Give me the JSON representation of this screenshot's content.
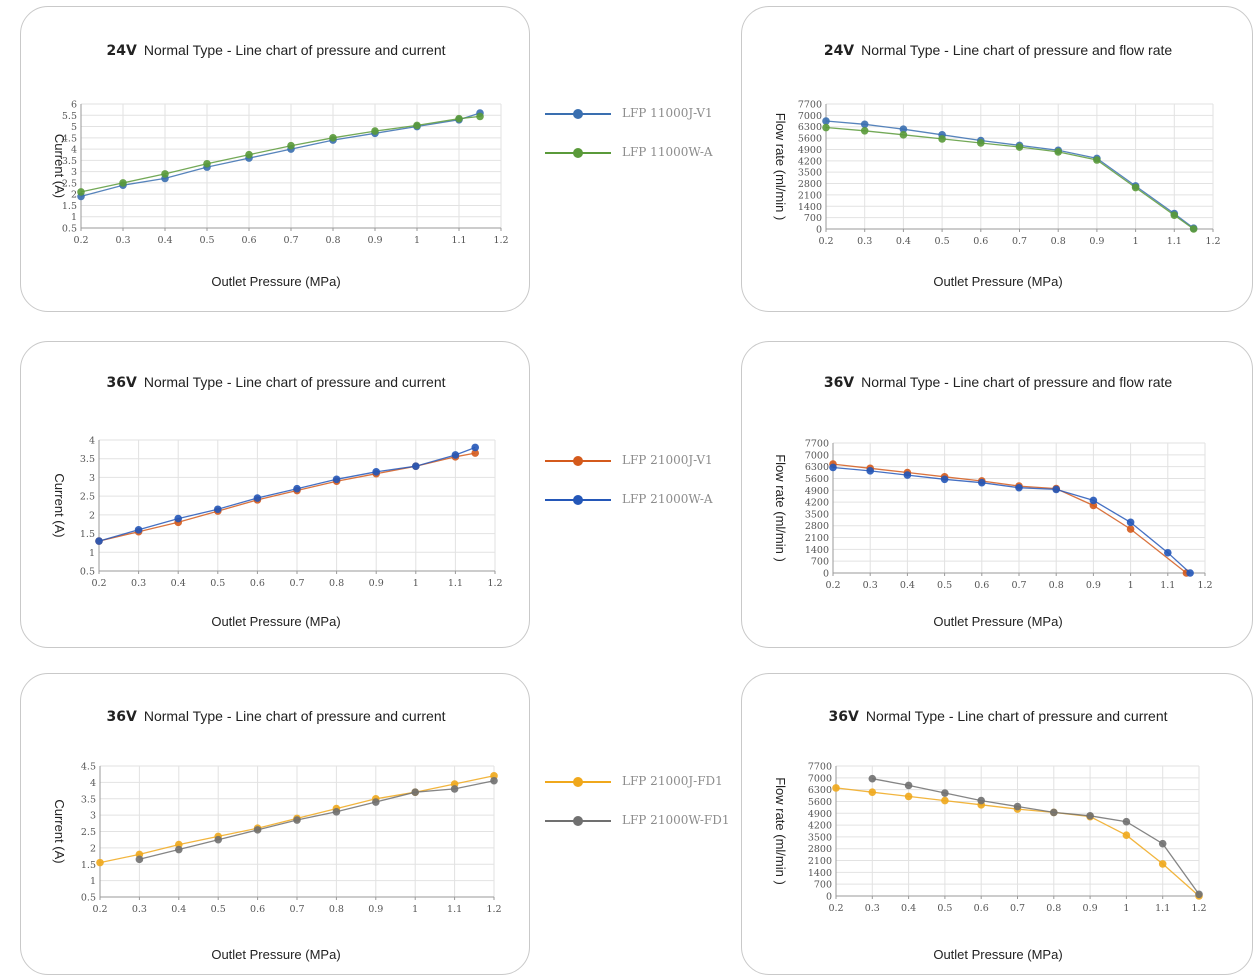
{
  "chart_data": [
    {
      "type": "line",
      "voltage": "24V",
      "title": "Normal Type - Line chart of pressure and current",
      "xlabel": "Outlet Pressure (MPa)",
      "ylabel": "Current (A)",
      "xlim": [
        0.2,
        1.2
      ],
      "ylim": [
        0.5,
        6
      ],
      "xticks": [
        0.2,
        0.3,
        0.4,
        0.5,
        0.6,
        0.7,
        0.8,
        0.9,
        1,
        1.1,
        1.2
      ],
      "yticks": [
        0.5,
        1,
        1.5,
        2,
        2.5,
        3,
        3.5,
        4,
        4.5,
        5,
        5.5,
        6
      ],
      "grid": true,
      "series": [
        {
          "name": "LFP 11000J-V1",
          "color": "#3a6fb0",
          "x": [
            0.2,
            0.3,
            0.4,
            0.5,
            0.6,
            0.7,
            0.8,
            0.9,
            1.0,
            1.1,
            1.15
          ],
          "y": [
            1.9,
            2.4,
            2.7,
            3.2,
            3.6,
            4.0,
            4.4,
            4.7,
            5.0,
            5.3,
            5.6
          ]
        },
        {
          "name": "LFP 11000W-A",
          "color": "#5a9a3a",
          "x": [
            0.2,
            0.3,
            0.4,
            0.5,
            0.6,
            0.7,
            0.8,
            0.9,
            1.0,
            1.1,
            1.15
          ],
          "y": [
            2.1,
            2.5,
            2.9,
            3.35,
            3.75,
            4.15,
            4.5,
            4.8,
            5.05,
            5.35,
            5.45
          ]
        }
      ]
    },
    {
      "type": "line",
      "voltage": "24V",
      "title": "Normal Type - Line chart of pressure and flow rate",
      "xlabel": "Outlet Pressure (MPa)",
      "ylabel": "Flow rate  (ml/min )",
      "xlim": [
        0.2,
        1.2
      ],
      "ylim": [
        0,
        7700
      ],
      "xticks": [
        0.2,
        0.3,
        0.4,
        0.5,
        0.6,
        0.7,
        0.8,
        0.9,
        1,
        1.1,
        1.2
      ],
      "yticks": [
        0,
        700,
        1400,
        2100,
        2800,
        3500,
        4200,
        4900,
        5600,
        6300,
        7000,
        7700
      ],
      "grid": true,
      "series": [
        {
          "name": "LFP 11000J-V1",
          "color": "#3a6fb0",
          "x": [
            0.2,
            0.3,
            0.4,
            0.5,
            0.6,
            0.7,
            0.8,
            0.9,
            1.0,
            1.1,
            1.15
          ],
          "y": [
            6650,
            6450,
            6150,
            5800,
            5450,
            5150,
            4850,
            4350,
            2650,
            950,
            50
          ]
        },
        {
          "name": "LFP 11000W-A",
          "color": "#5a9a3a",
          "x": [
            0.2,
            0.3,
            0.4,
            0.5,
            0.6,
            0.7,
            0.8,
            0.9,
            1.0,
            1.1,
            1.15
          ],
          "y": [
            6250,
            6050,
            5800,
            5550,
            5300,
            5050,
            4750,
            4250,
            2550,
            850,
            0
          ]
        }
      ]
    },
    {
      "type": "line",
      "voltage": "36V",
      "title": "Normal Type - Line chart of pressure and current",
      "xlabel": "Outlet Pressure (MPa)",
      "ylabel": "Current (A)",
      "xlim": [
        0.2,
        1.2
      ],
      "ylim": [
        0.5,
        4
      ],
      "xticks": [
        0.2,
        0.3,
        0.4,
        0.5,
        0.6,
        0.7,
        0.8,
        0.9,
        1,
        1.1,
        1.2
      ],
      "yticks": [
        0.5,
        1,
        1.5,
        2,
        2.5,
        3,
        3.5,
        4
      ],
      "grid": true,
      "series": [
        {
          "name": "LFP 21000J-V1",
          "color": "#d45a1c",
          "x": [
            0.2,
            0.3,
            0.4,
            0.5,
            0.6,
            0.7,
            0.8,
            0.9,
            1.0,
            1.1,
            1.15
          ],
          "y": [
            1.3,
            1.55,
            1.8,
            2.1,
            2.4,
            2.65,
            2.9,
            3.1,
            3.3,
            3.55,
            3.65
          ]
        },
        {
          "name": "LFP 21000W-A",
          "color": "#2457b8",
          "x": [
            0.2,
            0.3,
            0.4,
            0.5,
            0.6,
            0.7,
            0.8,
            0.9,
            1.0,
            1.1,
            1.15
          ],
          "y": [
            1.3,
            1.6,
            1.9,
            2.15,
            2.45,
            2.7,
            2.95,
            3.15,
            3.3,
            3.6,
            3.8
          ]
        }
      ]
    },
    {
      "type": "line",
      "voltage": "36V",
      "title": "Normal Type - Line chart of pressure and flow rate",
      "xlabel": "Outlet Pressure (MPa)",
      "ylabel": "Flow rate  (ml/min )",
      "xlim": [
        0.2,
        1.2
      ],
      "ylim": [
        0,
        7700
      ],
      "xticks": [
        0.2,
        0.3,
        0.4,
        0.5,
        0.6,
        0.7,
        0.8,
        0.9,
        1,
        1.1,
        1.2
      ],
      "yticks": [
        0,
        700,
        1400,
        2100,
        2800,
        3500,
        4200,
        4900,
        5600,
        6300,
        7000,
        7700
      ],
      "grid": true,
      "series": [
        {
          "name": "LFP 21000J-V1",
          "color": "#d45a1c",
          "x": [
            0.2,
            0.3,
            0.4,
            0.5,
            0.6,
            0.7,
            0.8,
            0.9,
            1.0,
            1.15
          ],
          "y": [
            6450,
            6200,
            5950,
            5700,
            5450,
            5150,
            5000,
            4000,
            2600,
            0
          ]
        },
        {
          "name": "LFP 21000W-A",
          "color": "#2457b8",
          "x": [
            0.2,
            0.3,
            0.4,
            0.5,
            0.6,
            0.7,
            0.8,
            0.9,
            1.0,
            1.1,
            1.16
          ],
          "y": [
            6250,
            6050,
            5800,
            5550,
            5350,
            5050,
            4950,
            4300,
            3000,
            1200,
            0
          ]
        }
      ]
    },
    {
      "type": "line",
      "voltage": "36V",
      "title": "Normal Type - Line chart of pressure and current",
      "xlabel": "Outlet Pressure (MPa)",
      "ylabel": "Current (A)",
      "xlim": [
        0.2,
        1.2
      ],
      "ylim": [
        0.5,
        4.5
      ],
      "xticks": [
        0.2,
        0.3,
        0.4,
        0.5,
        0.6,
        0.7,
        0.8,
        0.9,
        1,
        1.1,
        1.2
      ],
      "yticks": [
        0.5,
        1,
        1.5,
        2,
        2.5,
        3,
        3.5,
        4,
        4.5
      ],
      "grid": true,
      "series": [
        {
          "name": "LFP 21000J-FD1",
          "color": "#f0a81c",
          "x": [
            0.2,
            0.3,
            0.4,
            0.5,
            0.6,
            0.7,
            0.8,
            0.9,
            1.0,
            1.1,
            1.2
          ],
          "y": [
            1.55,
            1.8,
            2.1,
            2.35,
            2.6,
            2.9,
            3.2,
            3.5,
            3.7,
            3.95,
            4.2
          ]
        },
        {
          "name": "LFP 21000W-FD1",
          "color": "#707070",
          "x": [
            0.3,
            0.4,
            0.5,
            0.6,
            0.7,
            0.8,
            0.9,
            1.0,
            1.1,
            1.2
          ],
          "y": [
            1.65,
            1.95,
            2.25,
            2.55,
            2.85,
            3.1,
            3.4,
            3.7,
            3.8,
            4.05
          ]
        }
      ]
    },
    {
      "type": "line",
      "voltage": "36V",
      "title": "Normal Type - Line chart of pressure and current",
      "xlabel": "Outlet Pressure (MPa)",
      "ylabel": "Flow rate  (ml/min )",
      "xlim": [
        0.2,
        1.2
      ],
      "ylim": [
        0,
        7700
      ],
      "xticks": [
        0.2,
        0.3,
        0.4,
        0.5,
        0.6,
        0.7,
        0.8,
        0.9,
        1,
        1.1,
        1.2
      ],
      "yticks": [
        0,
        700,
        1400,
        2100,
        2800,
        3500,
        4200,
        4900,
        5600,
        6300,
        7000,
        7700
      ],
      "grid": true,
      "series": [
        {
          "name": "LFP 21000J-FD1",
          "color": "#f0a81c",
          "x": [
            0.2,
            0.3,
            0.4,
            0.5,
            0.6,
            0.7,
            0.8,
            0.9,
            1.0,
            1.1,
            1.2
          ],
          "y": [
            6400,
            6150,
            5900,
            5650,
            5400,
            5150,
            4950,
            4700,
            3600,
            1900,
            0
          ]
        },
        {
          "name": "LFP 21000W-FD1",
          "color": "#707070",
          "x": [
            0.3,
            0.4,
            0.5,
            0.6,
            0.7,
            0.8,
            0.9,
            1.0,
            1.1,
            1.2
          ],
          "y": [
            6950,
            6550,
            6100,
            5650,
            5300,
            4950,
            4750,
            4400,
            3100,
            100
          ]
        }
      ]
    }
  ]
}
